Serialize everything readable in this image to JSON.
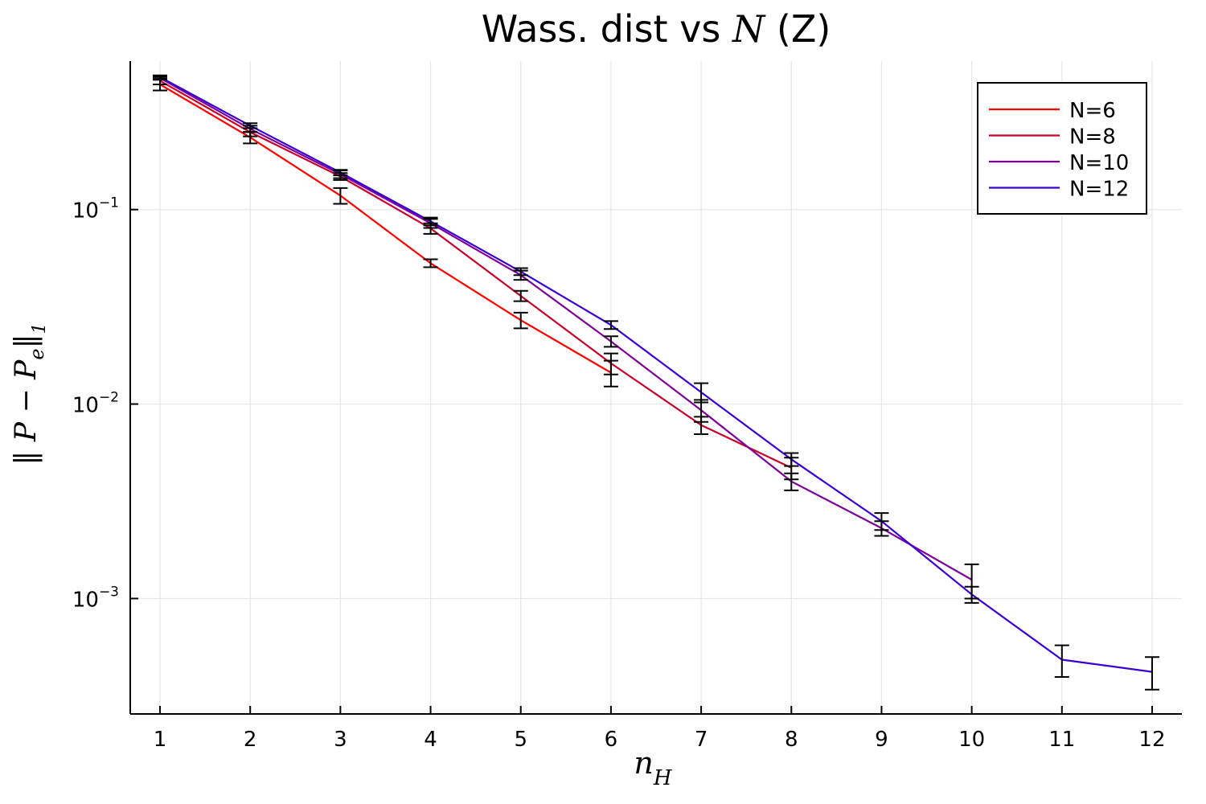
{
  "chart_data": {
    "type": "line",
    "title_prefix": "Wass. dist vs ",
    "title_math": "N",
    "title_suffix": " (Z)",
    "xlabel": "n",
    "xlabel_sub": "H",
    "ylabel_left": "‖ P − P",
    "ylabel_sub_e": "e",
    "ylabel_right": "‖",
    "ylabel_sub_1": "1",
    "x": [
      1,
      2,
      3,
      4,
      5,
      6,
      7,
      8,
      9,
      10,
      11,
      12
    ],
    "xlim": [
      0.67,
      12.33
    ],
    "ylim": [
      0.000255,
      0.58
    ],
    "yscale": "log",
    "xticks": [
      "1",
      "2",
      "3",
      "4",
      "5",
      "6",
      "7",
      "8",
      "9",
      "10",
      "11",
      "12"
    ],
    "yticks": [
      {
        "value": 0.1,
        "base": "10",
        "exp": "−1"
      },
      {
        "value": 0.01,
        "base": "10",
        "exp": "−2"
      },
      {
        "value": 0.001,
        "base": "10",
        "exp": "−3"
      }
    ],
    "grid": true,
    "legend_position": "top-right",
    "series": [
      {
        "name": "N=6",
        "color": "#ff0000",
        "x": [
          1,
          2,
          3,
          4,
          5,
          6
        ],
        "y": [
          0.44,
          0.235,
          0.118,
          0.053,
          0.027,
          0.0145
        ],
        "err": [
          0.03,
          0.016,
          0.011,
          0.0025,
          0.0025,
          0.0022
        ]
      },
      {
        "name": "N=8",
        "color": "#c8002a",
        "x": [
          1,
          2,
          3,
          4,
          5,
          6,
          7,
          8
        ],
        "y": [
          0.46,
          0.25,
          0.148,
          0.08,
          0.036,
          0.0162,
          0.0078,
          0.0047
        ],
        "err": [
          0.02,
          0.012,
          0.006,
          0.005,
          0.0022,
          0.002,
          0.0008,
          0.0006
        ]
      },
      {
        "name": "N=10",
        "color": "#80009a",
        "x": [
          1,
          2,
          3,
          4,
          5,
          6,
          7,
          8,
          9,
          10
        ],
        "y": [
          0.475,
          0.26,
          0.152,
          0.085,
          0.046,
          0.021,
          0.0093,
          0.004,
          0.0023,
          0.00125
        ],
        "err": [
          0.01,
          0.01,
          0.007,
          0.0045,
          0.0025,
          0.0013,
          0.0012,
          0.0004,
          0.0002,
          0.00025
        ]
      },
      {
        "name": "N=12",
        "color": "#3a00d6",
        "x": [
          1,
          2,
          3,
          4,
          5,
          6,
          7,
          8,
          9,
          10,
          11,
          12
        ],
        "y": [
          0.48,
          0.27,
          0.155,
          0.087,
          0.048,
          0.0255,
          0.0115,
          0.0052,
          0.0025,
          0.00105,
          0.000485,
          0.00042
        ],
        "err": [
          0.01,
          0.008,
          0.005,
          0.004,
          0.002,
          0.0012,
          0.0013,
          0.0004,
          0.00025,
          0.0001,
          9e-05,
          8e-05
        ]
      }
    ]
  }
}
